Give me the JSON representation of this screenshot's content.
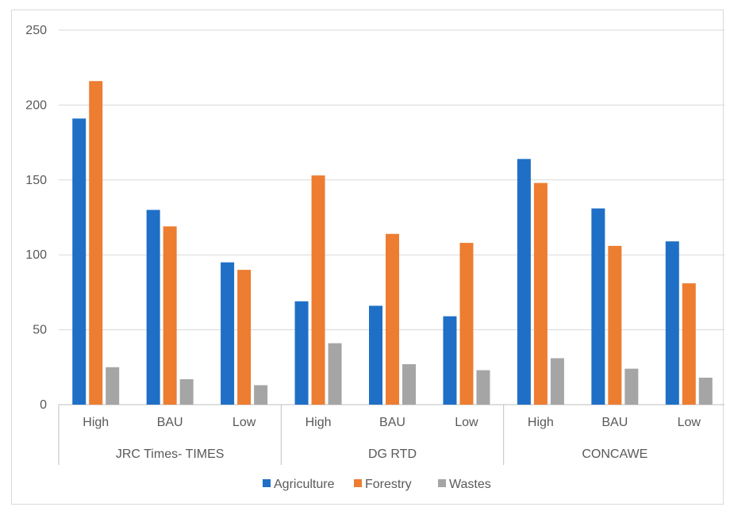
{
  "chart_data": {
    "type": "bar",
    "groups": [
      "JRC Times- TIMES",
      "DG RTD",
      "CONCAWE"
    ],
    "categories": [
      "High",
      "BAU",
      "Low",
      "High",
      "BAU",
      "Low",
      "High",
      "BAU",
      "Low"
    ],
    "series": [
      {
        "name": "Agriculture",
        "color": "#1f6fc6",
        "values": [
          191,
          130,
          95,
          69,
          66,
          59,
          164,
          131,
          109
        ]
      },
      {
        "name": "Forestry",
        "color": "#ed7d31",
        "values": [
          216,
          119,
          90,
          153,
          114,
          108,
          148,
          106,
          81
        ]
      },
      {
        "name": "Wastes",
        "color": "#a5a5a5",
        "values": [
          25,
          17,
          13,
          41,
          27,
          23,
          31,
          24,
          18
        ]
      }
    ],
    "ylim": [
      0,
      250
    ],
    "yticks": [
      "0",
      "50",
      "100",
      "150",
      "200",
      "250"
    ],
    "grid": true,
    "legend_position": "bottom"
  }
}
